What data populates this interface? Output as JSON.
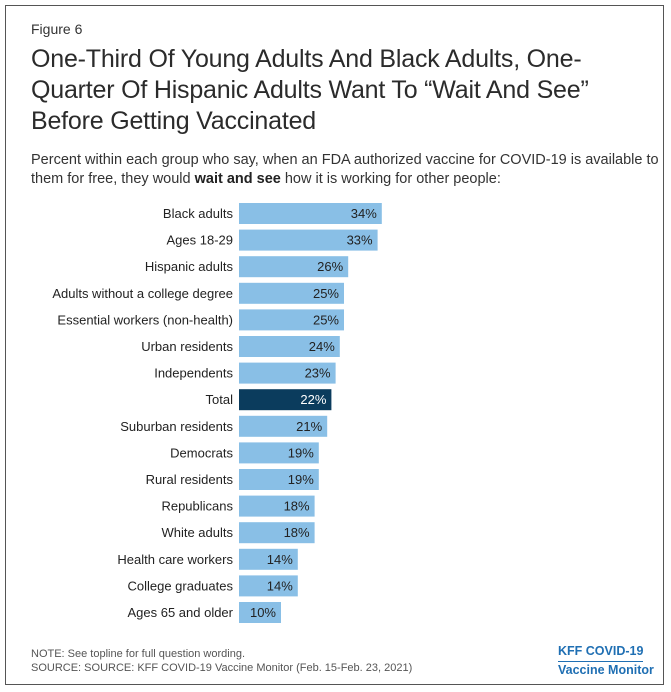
{
  "figure_label": "Figure 6",
  "title": "One-Third Of Young Adults And Black Adults, One-Quarter Of Hispanic Adults Want To “Wait And See” Before Getting Vaccinated",
  "subtitle_pre": "Percent within each group who say, when an FDA authorized vaccine for COVID-19 is available to them for free, they would ",
  "subtitle_bold": "wait and see",
  "subtitle_post": " how it is working for other people:",
  "note": "NOTE: See topline for full question wording.",
  "source": "SOURCE: SOURCE: KFF COVID-19 Vaccine Monitor (Feb. 15-Feb. 23, 2021)",
  "logo": {
    "line1": "KFF COVID-19",
    "line2": "Vaccine Monitor"
  },
  "colors": {
    "bar": "#89bfe6",
    "highlight": "#0b3c5d",
    "label_text": "#222222",
    "highlight_text": "#ffffff"
  },
  "chart_data": {
    "type": "bar",
    "orientation": "horizontal",
    "categories": [
      "Black adults",
      "Ages 18-29",
      "Hispanic adults",
      "Adults without a college degree",
      "Essential workers (non-health)",
      "Urban residents",
      "Independents",
      "Total",
      "Suburban residents",
      "Democrats",
      "Rural residents",
      "Republicans",
      "White adults",
      "Health care workers",
      "College graduates",
      "Ages 65 and older"
    ],
    "values": [
      34,
      33,
      26,
      25,
      25,
      24,
      23,
      22,
      21,
      19,
      19,
      18,
      18,
      14,
      14,
      10
    ],
    "value_labels": [
      "34%",
      "33%",
      "26%",
      "25%",
      "25%",
      "24%",
      "23%",
      "22%",
      "21%",
      "19%",
      "19%",
      "18%",
      "18%",
      "14%",
      "14%",
      "10%"
    ],
    "highlight_category": "Total",
    "grid": false,
    "legend": false
  }
}
